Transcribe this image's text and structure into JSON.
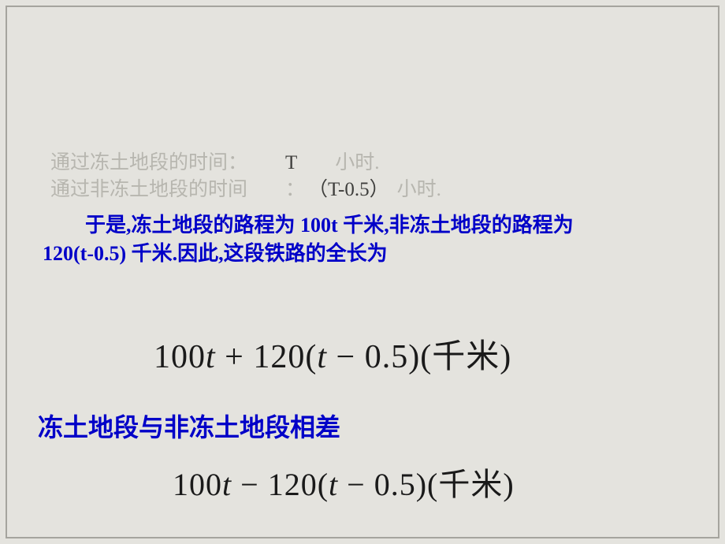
{
  "colors": {
    "background": "#e4e3de",
    "border": "#a5a49e",
    "muted_text": "#b7b6af",
    "body_text": "#3e3e3c",
    "accent_blue": "#0000c8",
    "formula_text": "#1a1a1a"
  },
  "typography": {
    "muted_fontsize": 25,
    "para_fontsize": 26,
    "heading_fontsize": 32,
    "eq1_fontsize": 42,
    "eq2_fontsize": 40
  },
  "line1": {
    "prefix": "通过冻土地段的时间：",
    "var": "T",
    "suffix": "小时."
  },
  "line2": {
    "prefix": "通过非冻土地段的时间",
    "colon": "：",
    "expr": "（T-0.5）",
    "suffix": "小时."
  },
  "para": {
    "seg1": "于是,冻土地段的路程为",
    "val1": " 100t ",
    "seg2": "千米,非冻土地段的路程为",
    "val2": "120(t-0.5) ",
    "seg3": "千米.因此,这段铁路的全长为"
  },
  "eq1": {
    "a": "100",
    "t1": "t",
    "plus": " + ",
    "b": "120(",
    "t2": "t",
    "c": " − 0.5)(",
    "unit": "千米",
    "close": ")"
  },
  "heading": "冻土地段与非冻土地段相差",
  "eq2": {
    "a": "100",
    "t1": "t",
    "minus": " − ",
    "b": "120(",
    "t2": "t",
    "c": " − 0.5)(",
    "unit": "千米",
    "close": ")"
  }
}
